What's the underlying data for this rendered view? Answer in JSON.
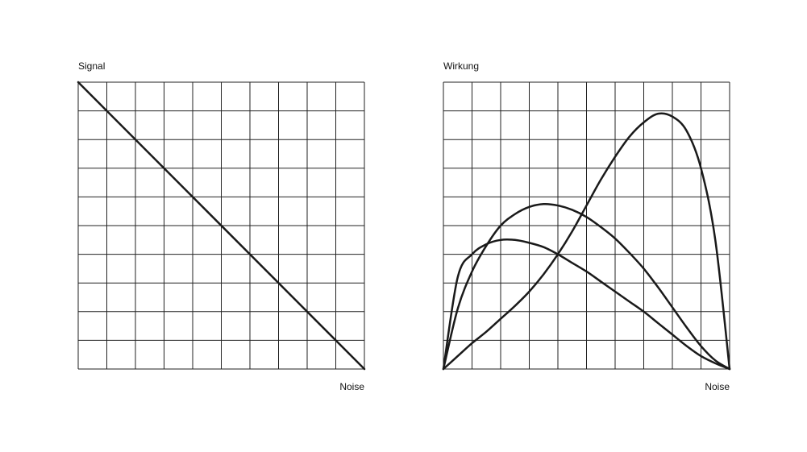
{
  "chart_data": [
    {
      "type": "line",
      "ylabel": "Signal",
      "xlabel": "Noise",
      "xlim": [
        0,
        10
      ],
      "ylim": [
        0,
        10
      ],
      "grid": true,
      "series": [
        {
          "x": [
            0,
            10
          ],
          "y": [
            10,
            0
          ]
        }
      ]
    },
    {
      "type": "line",
      "ylabel": "Wirkung",
      "xlabel": "Noise",
      "xlim": [
        0,
        10
      ],
      "ylim": [
        0,
        10
      ],
      "grid": true,
      "series": [
        {
          "x": [
            0,
            0.5,
            1,
            1.5,
            2,
            2.5,
            3,
            3.5,
            4,
            4.5,
            5,
            5.5,
            6,
            6.5,
            7,
            7.5,
            8,
            8.5,
            9,
            9.5,
            10
          ],
          "y": [
            0,
            3.2,
            4.0,
            4.35,
            4.5,
            4.5,
            4.4,
            4.25,
            4.0,
            3.7,
            3.4,
            3.05,
            2.7,
            2.35,
            2.0,
            1.6,
            1.2,
            0.8,
            0.45,
            0.2,
            0
          ]
        },
        {
          "x": [
            0,
            0.5,
            1,
            1.5,
            2,
            2.5,
            3,
            3.5,
            4,
            4.5,
            5,
            5.5,
            6,
            6.5,
            7,
            7.5,
            8,
            8.5,
            9,
            9.5,
            10
          ],
          "y": [
            0,
            2.1,
            3.4,
            4.3,
            5.0,
            5.4,
            5.65,
            5.75,
            5.7,
            5.55,
            5.3,
            4.95,
            4.55,
            4.05,
            3.5,
            2.85,
            2.15,
            1.45,
            0.8,
            0.3,
            0
          ]
        },
        {
          "x": [
            0,
            0.5,
            1,
            1.5,
            2,
            2.5,
            3,
            3.5,
            4,
            4.5,
            5,
            5.5,
            6,
            6.5,
            7,
            7.5,
            8,
            8.5,
            9,
            9.5,
            10
          ],
          "y": [
            0,
            0.45,
            0.9,
            1.3,
            1.75,
            2.2,
            2.7,
            3.3,
            4.0,
            4.8,
            5.7,
            6.6,
            7.4,
            8.1,
            8.6,
            8.9,
            8.8,
            8.3,
            7.0,
            4.5,
            0
          ]
        }
      ]
    }
  ]
}
